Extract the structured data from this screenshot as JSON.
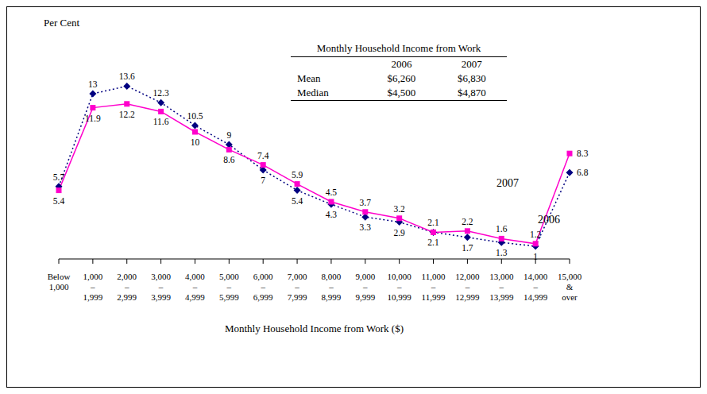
{
  "chart_data": {
    "type": "line",
    "y_label": "Per Cent",
    "x_label": "Monthly Household Income from Work ($)",
    "categories": [
      "Below 1,000",
      "1,000 – 1,999",
      "2,000 – 2,999",
      "3,000 – 3,999",
      "4,000 – 4,999",
      "5,000 – 5,999",
      "6,000 – 6,999",
      "7,000 – 7,999",
      "8,000 – 8,999",
      "9,000 – 9,999",
      "10,000 – 10,999",
      "11,000 – 11,999",
      "12,000 – 12,999",
      "13,000 – 13,999",
      "14,000 – 14,999",
      "15,000 & over"
    ],
    "series": [
      {
        "name": "2006",
        "color": "#000080",
        "marker": "diamond",
        "line_style": "dotted",
        "values": [
          5.7,
          13.0,
          13.6,
          12.3,
          10.5,
          9.0,
          7.0,
          5.4,
          4.3,
          3.3,
          2.9,
          2.1,
          1.7,
          1.3,
          1.0,
          6.8
        ]
      },
      {
        "name": "2007",
        "color": "#ff00cc",
        "marker": "square",
        "line_style": "solid",
        "values": [
          5.4,
          11.9,
          12.2,
          11.6,
          10.0,
          8.6,
          7.4,
          5.9,
          4.5,
          3.7,
          3.2,
          2.1,
          2.2,
          1.6,
          1.2,
          8.3
        ]
      }
    ],
    "ylim": [
      0,
      18
    ],
    "tick_labels": "x",
    "data_labels": true,
    "grid": false,
    "table": {
      "title": "Monthly Household Income from Work",
      "columns": [
        "2006",
        "2007"
      ],
      "rows": [
        [
          "Mean",
          "$6,260",
          "$6,830"
        ],
        [
          "Median",
          "$4,500",
          "$4,870"
        ]
      ]
    }
  }
}
